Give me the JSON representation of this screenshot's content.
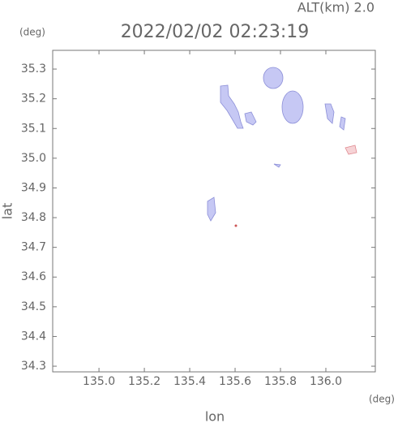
{
  "chart_data": {
    "type": "map",
    "title": "2022/02/02 02:23:19",
    "subtitle": "ALT(km) 2.0",
    "x_label": "lon",
    "y_label": "lat",
    "x_unit": "(deg)",
    "y_unit": "(deg)",
    "xlim": [
      134.796,
      136.218
    ],
    "ylim": [
      34.281,
      35.363
    ],
    "xticks": [
      {
        "value": 135,
        "label": "135.0"
      },
      135.2,
      135.4,
      135.6,
      135.8,
      {
        "value": 136,
        "label": "136.0"
      }
    ],
    "yticks": [
      34.3,
      34.4,
      34.5,
      34.6,
      34.7,
      34.8,
      34.9,
      {
        "value": 35,
        "label": "35.0"
      },
      35.1,
      35.2,
      35.3
    ]
  }
}
